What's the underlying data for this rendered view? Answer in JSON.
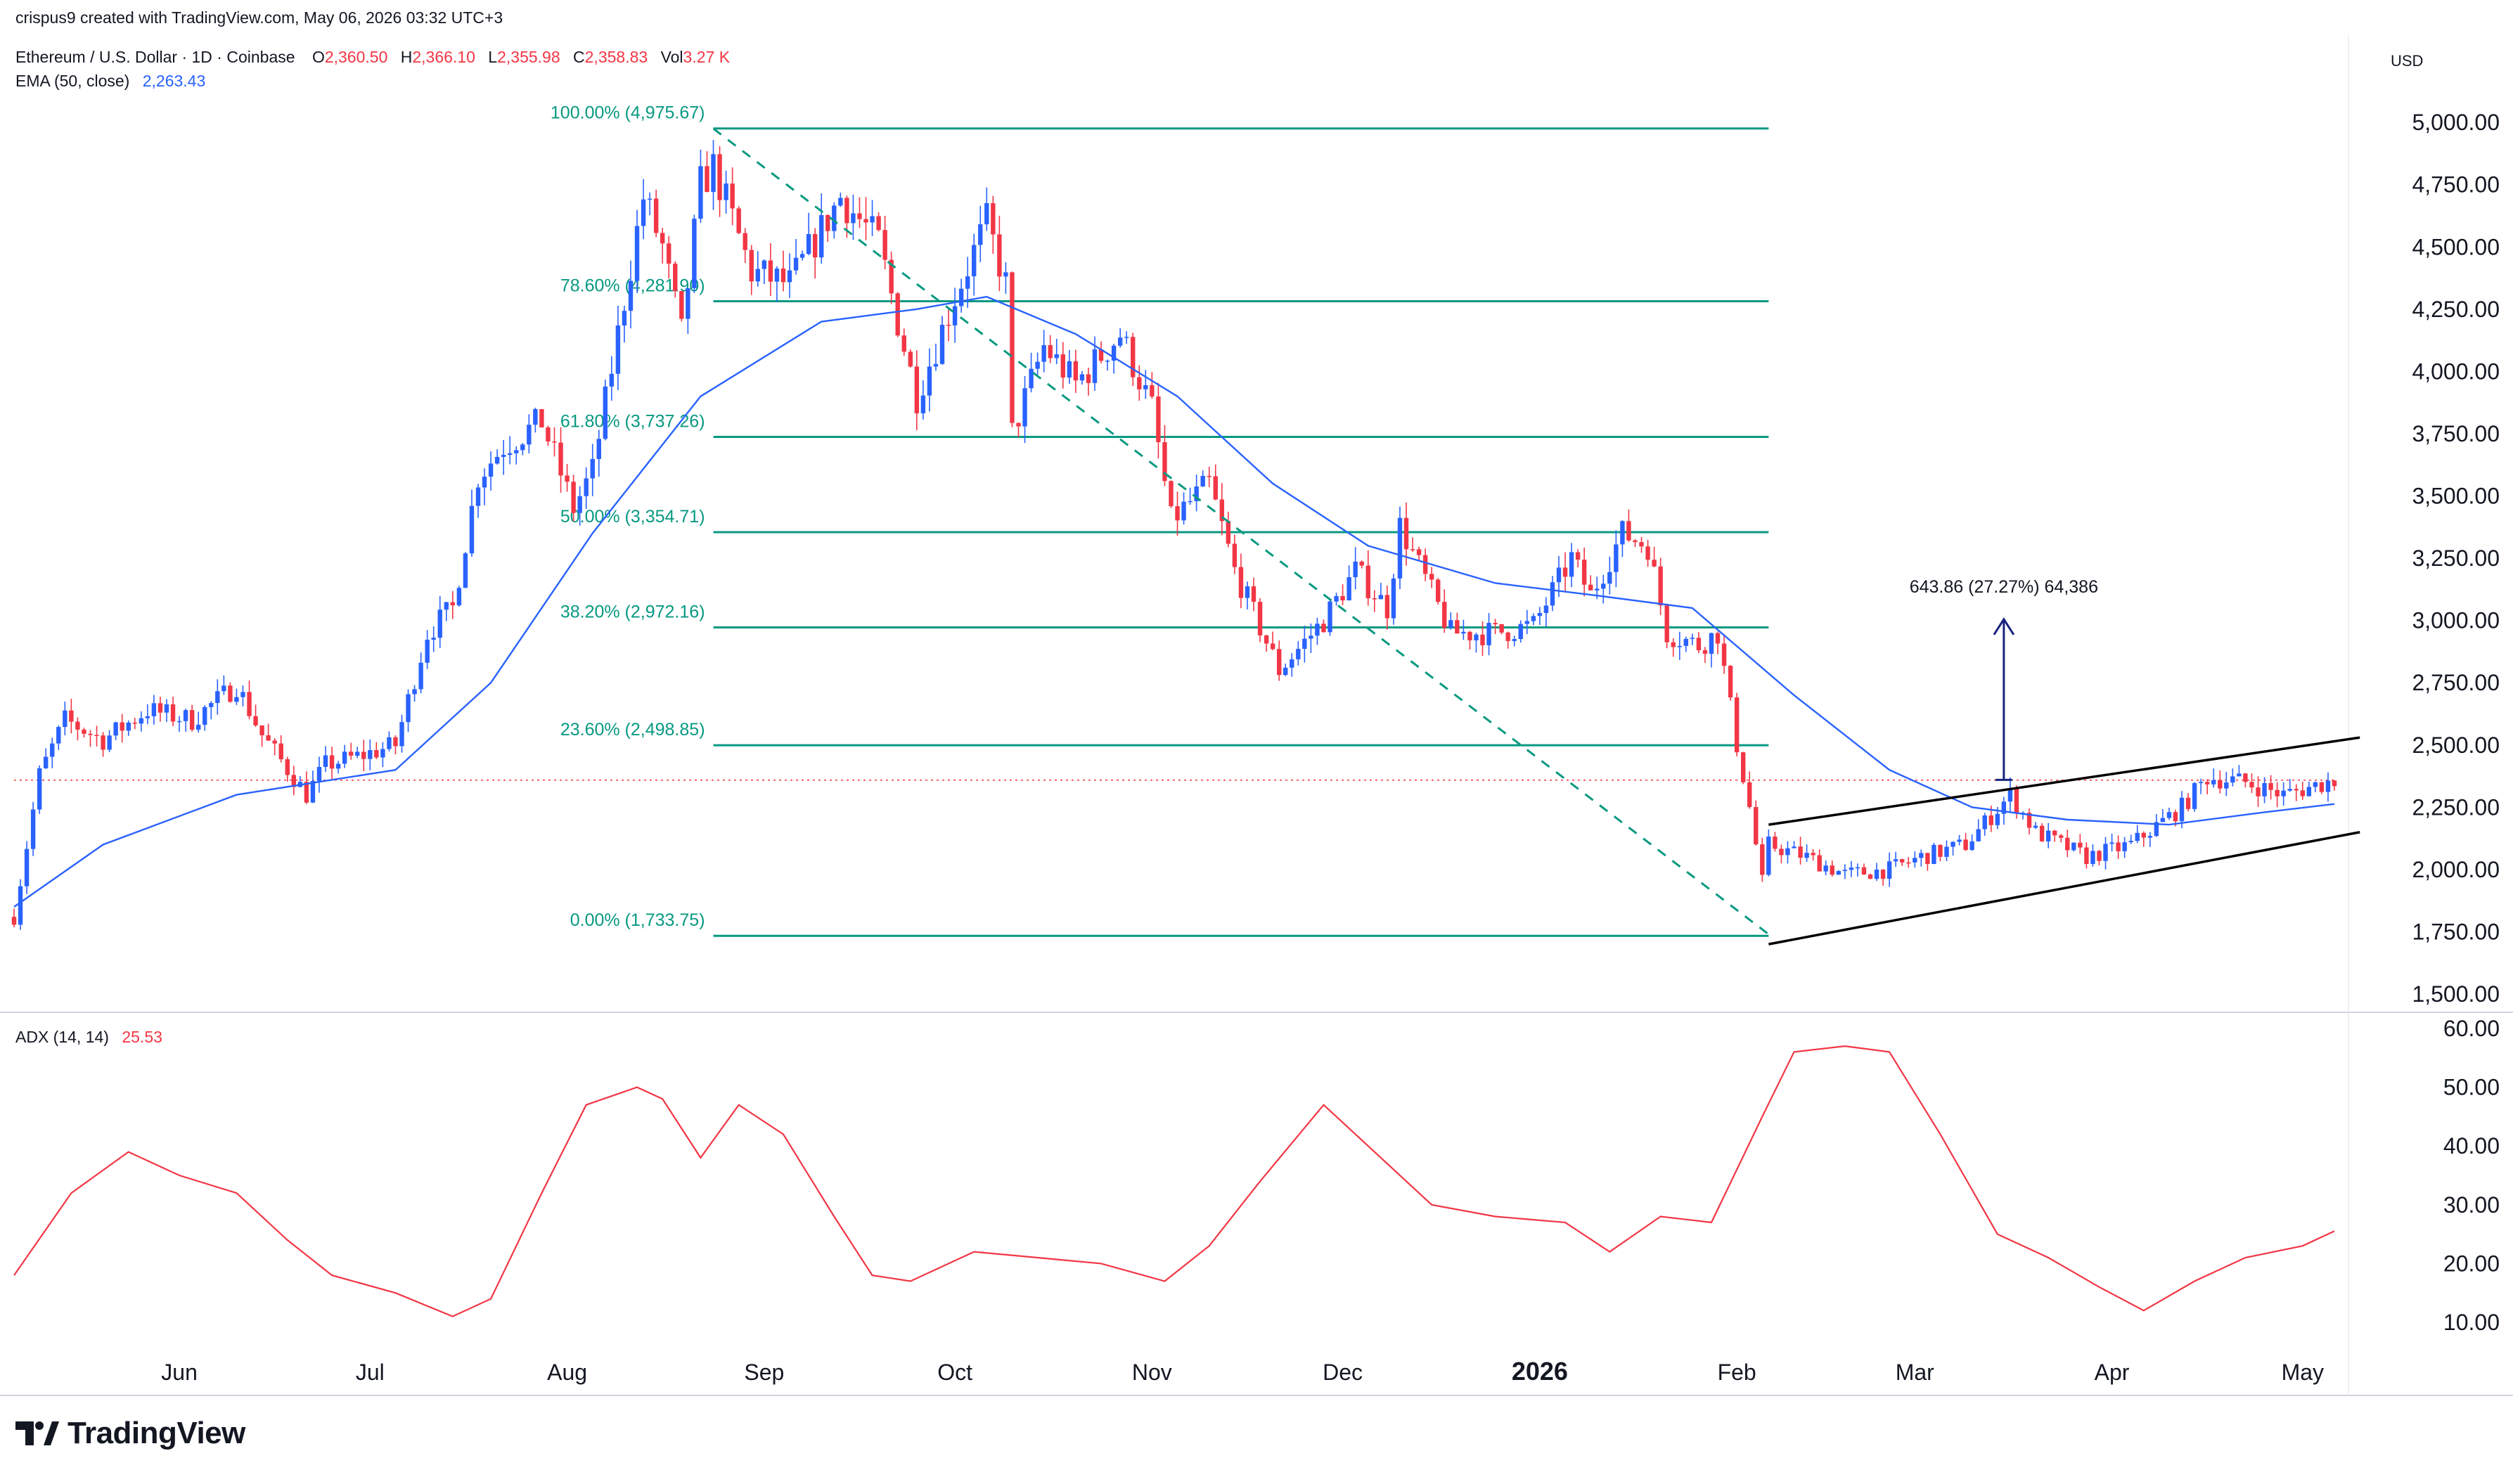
{
  "header": {
    "author_line": "crispus9 created with TradingView.com, May 06, 2026 03:32 UTC+3",
    "symbol": "Ethereum / U.S. Dollar · 1D · Coinbase",
    "ohlc": {
      "o_label": "O",
      "o": "2,360.50",
      "h_label": "H",
      "h": "2,366.10",
      "l_label": "L",
      "l": "2,355.98",
      "c_label": "C",
      "c": "2,358.83",
      "vol_label": "Vol",
      "vol": "3.27 K"
    },
    "ema_label": "EMA (50, close)",
    "ema_value": "2,263.43",
    "currency": "USD"
  },
  "branding": {
    "name": "TradingView",
    "logo_icon": "tradingview-logo-icon"
  },
  "colors": {
    "up": "#2962ff",
    "down": "#f23645",
    "fib": "#089981",
    "ema": "#2962ff",
    "adx": "#f23645",
    "channel": "#000000",
    "target": "#1a237e",
    "price_line": "#f23645"
  },
  "chart_data": [
    {
      "type": "candlestick",
      "title": "Ethereum / U.S. Dollar · 1D · Coinbase",
      "x_range": [
        "2025-05-06",
        "2026-05-06"
      ],
      "ylim": [
        1450,
        5250
      ],
      "y_ticks": [
        "1,500.00",
        "1,750.00",
        "2,000.00",
        "2,250.00",
        "2,500.00",
        "2,750.00",
        "3,000.00",
        "3,250.00",
        "3,500.00",
        "3,750.00",
        "4,000.00",
        "4,250.00",
        "4,500.00",
        "4,750.00",
        "5,000.00"
      ],
      "x_ticks": [
        {
          "label": "Jun",
          "date": "2025-06-01"
        },
        {
          "label": "Jul",
          "date": "2025-07-01"
        },
        {
          "label": "Aug",
          "date": "2025-08-01"
        },
        {
          "label": "Sep",
          "date": "2025-09-01"
        },
        {
          "label": "Oct",
          "date": "2025-10-01"
        },
        {
          "label": "Nov",
          "date": "2025-11-01"
        },
        {
          "label": "Dec",
          "date": "2025-12-01"
        },
        {
          "label": "2026",
          "date": "2026-01-01",
          "bold": true
        },
        {
          "label": "Feb",
          "date": "2026-02-01"
        },
        {
          "label": "Mar",
          "date": "2026-03-01"
        },
        {
          "label": "Apr",
          "date": "2026-04-01"
        },
        {
          "label": "May",
          "date": "2026-05-01"
        }
      ],
      "price_path": [
        [
          "2025-05-06",
          1810
        ],
        [
          "2025-05-10",
          2380
        ],
        [
          "2025-05-14",
          2600
        ],
        [
          "2025-05-20",
          2520
        ],
        [
          "2025-05-27",
          2640
        ],
        [
          "2025-06-03",
          2600
        ],
        [
          "2025-06-10",
          2740
        ],
        [
          "2025-06-14",
          2540
        ],
        [
          "2025-06-21",
          2300
        ],
        [
          "2025-06-24",
          2420
        ],
        [
          "2025-06-30",
          2460
        ],
        [
          "2025-07-05",
          2500
        ],
        [
          "2025-07-10",
          2950
        ],
        [
          "2025-07-14",
          3050
        ],
        [
          "2025-07-18",
          3580
        ],
        [
          "2025-07-22",
          3700
        ],
        [
          "2025-07-28",
          3800
        ],
        [
          "2025-08-02",
          3450
        ],
        [
          "2025-08-05",
          3600
        ],
        [
          "2025-08-09",
          4150
        ],
        [
          "2025-08-13",
          4700
        ],
        [
          "2025-08-16",
          4500
        ],
        [
          "2025-08-19",
          4150
        ],
        [
          "2025-08-22",
          4750
        ],
        [
          "2025-08-24",
          4820
        ],
        [
          "2025-08-30",
          4400
        ],
        [
          "2025-09-05",
          4350
        ],
        [
          "2025-09-13",
          4700
        ],
        [
          "2025-09-19",
          4520
        ],
        [
          "2025-09-22",
          4200
        ],
        [
          "2025-09-25",
          3900
        ],
        [
          "2025-10-01",
          4300
        ],
        [
          "2025-10-06",
          4600
        ],
        [
          "2025-10-09",
          4350
        ],
        [
          "2025-10-10",
          3750
        ],
        [
          "2025-10-15",
          4100
        ],
        [
          "2025-10-20",
          3950
        ],
        [
          "2025-10-27",
          4150
        ],
        [
          "2025-11-01",
          3850
        ],
        [
          "2025-11-04",
          3400
        ],
        [
          "2025-11-10",
          3550
        ],
        [
          "2025-11-14",
          3200
        ],
        [
          "2025-11-21",
          2800
        ],
        [
          "2025-11-28",
          3000
        ],
        [
          "2025-12-03",
          3200
        ],
        [
          "2025-12-08",
          3050
        ],
        [
          "2025-12-10",
          3380
        ],
        [
          "2025-12-18",
          2950
        ],
        [
          "2025-12-25",
          2950
        ],
        [
          "2025-12-31",
          2980
        ],
        [
          "2026-01-06",
          3250
        ],
        [
          "2026-01-09",
          3100
        ],
        [
          "2026-01-14",
          3350
        ],
        [
          "2026-01-18",
          3300
        ],
        [
          "2026-01-21",
          2950
        ],
        [
          "2026-01-26",
          2900
        ],
        [
          "2026-01-29",
          2950
        ],
        [
          "2026-02-01",
          2500
        ],
        [
          "2026-02-03",
          2250
        ],
        [
          "2026-02-05",
          1950
        ],
        [
          "2026-02-06",
          2100
        ],
        [
          "2026-02-12",
          2050
        ],
        [
          "2026-02-18",
          1980
        ],
        [
          "2026-02-25",
          2000
        ],
        [
          "2026-03-02",
          2050
        ],
        [
          "2026-03-09",
          2100
        ],
        [
          "2026-03-16",
          2300
        ],
        [
          "2026-03-20",
          2150
        ],
        [
          "2026-03-28",
          2050
        ],
        [
          "2026-04-04",
          2100
        ],
        [
          "2026-04-12",
          2250
        ],
        [
          "2026-04-16",
          2370
        ],
        [
          "2026-04-22",
          2350
        ],
        [
          "2026-04-28",
          2300
        ],
        [
          "2026-05-06",
          2359
        ]
      ],
      "ema50_path": [
        [
          "2025-05-06",
          1850
        ],
        [
          "2025-05-20",
          2100
        ],
        [
          "2025-06-10",
          2300
        ],
        [
          "2025-07-05",
          2400
        ],
        [
          "2025-07-20",
          2750
        ],
        [
          "2025-08-05",
          3350
        ],
        [
          "2025-08-22",
          3900
        ],
        [
          "2025-09-10",
          4200
        ],
        [
          "2025-09-25",
          4250
        ],
        [
          "2025-10-06",
          4300
        ],
        [
          "2025-10-20",
          4150
        ],
        [
          "2025-11-05",
          3900
        ],
        [
          "2025-11-20",
          3550
        ],
        [
          "2025-12-05",
          3300
        ],
        [
          "2025-12-25",
          3150
        ],
        [
          "2026-01-10",
          3100
        ],
        [
          "2026-01-25",
          3050
        ],
        [
          "2026-02-10",
          2700
        ],
        [
          "2026-02-25",
          2400
        ],
        [
          "2026-03-10",
          2250
        ],
        [
          "2026-03-25",
          2200
        ],
        [
          "2026-04-10",
          2180
        ],
        [
          "2026-04-25",
          2230
        ],
        [
          "2026-05-06",
          2263
        ]
      ],
      "fibonacci": {
        "start": {
          "date": "2025-08-24",
          "price": 4975.67
        },
        "end_date": "2026-02-06",
        "levels": [
          {
            "label": "100.00% (4,975.67)",
            "price": 4975.67
          },
          {
            "label": "78.60% (4,281.90)",
            "price": 4281.9
          },
          {
            "label": "61.80% (3,737.26)",
            "price": 3737.26
          },
          {
            "label": "50.00% (3,354.71)",
            "price": 3354.71
          },
          {
            "label": "38.20% (2,972.16)",
            "price": 2972.16
          },
          {
            "label": "23.60% (2,498.85)",
            "price": 2498.85
          },
          {
            "label": "0.00% (1,733.75)",
            "price": 1733.75
          }
        ]
      },
      "trend_dashed": [
        [
          "2025-08-24",
          4975
        ],
        [
          "2026-02-06",
          1740
        ]
      ],
      "channel": [
        [
          [
            "2026-02-06",
            2180
          ],
          [
            "2026-05-10",
            2530
          ]
        ],
        [
          [
            "2026-02-06",
            1700
          ],
          [
            "2026-05-10",
            2150
          ]
        ]
      ],
      "target": {
        "date": "2026-03-15",
        "from": 2360,
        "to": 3005,
        "label": "643.86 (27.27%) 64,386"
      },
      "current_price": 2358.83
    },
    {
      "type": "line",
      "title": "ADX (14, 14)",
      "current_value": "25.53",
      "ylim": [
        5,
        62
      ],
      "y_ticks": [
        "10.00",
        "20.00",
        "30.00",
        "40.00",
        "50.00",
        "60.00"
      ],
      "series": [
        {
          "name": "ADX (14, 14)",
          "points": [
            [
              "2025-05-06",
              18
            ],
            [
              "2025-05-15",
              32
            ],
            [
              "2025-05-24",
              39
            ],
            [
              "2025-06-01",
              35
            ],
            [
              "2025-06-10",
              32
            ],
            [
              "2025-06-18",
              24
            ],
            [
              "2025-06-25",
              18
            ],
            [
              "2025-07-05",
              15
            ],
            [
              "2025-07-14",
              11
            ],
            [
              "2025-07-20",
              14
            ],
            [
              "2025-07-28",
              32
            ],
            [
              "2025-08-04",
              47
            ],
            [
              "2025-08-12",
              50
            ],
            [
              "2025-08-16",
              48
            ],
            [
              "2025-08-22",
              38
            ],
            [
              "2025-08-28",
              47
            ],
            [
              "2025-09-04",
              42
            ],
            [
              "2025-09-12",
              28
            ],
            [
              "2025-09-18",
              18
            ],
            [
              "2025-09-24",
              17
            ],
            [
              "2025-10-04",
              22
            ],
            [
              "2025-10-14",
              21
            ],
            [
              "2025-10-24",
              20
            ],
            [
              "2025-11-03",
              17
            ],
            [
              "2025-11-10",
              23
            ],
            [
              "2025-11-18",
              34
            ],
            [
              "2025-11-28",
              47
            ],
            [
              "2025-12-05",
              40
            ],
            [
              "2025-12-15",
              30
            ],
            [
              "2025-12-25",
              28
            ],
            [
              "2026-01-05",
              27
            ],
            [
              "2026-01-12",
              22
            ],
            [
              "2026-01-20",
              28
            ],
            [
              "2026-01-28",
              27
            ],
            [
              "2026-02-05",
              45
            ],
            [
              "2026-02-10",
              56
            ],
            [
              "2026-02-18",
              57
            ],
            [
              "2026-02-25",
              56
            ],
            [
              "2026-03-05",
              42
            ],
            [
              "2026-03-14",
              25
            ],
            [
              "2026-03-22",
              21
            ],
            [
              "2026-03-30",
              16
            ],
            [
              "2026-04-06",
              12
            ],
            [
              "2026-04-14",
              17
            ],
            [
              "2026-04-22",
              21
            ],
            [
              "2026-05-01",
              23
            ],
            [
              "2026-05-06",
              25.53
            ]
          ]
        }
      ]
    }
  ]
}
